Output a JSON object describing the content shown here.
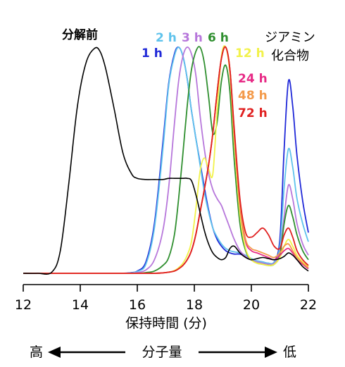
{
  "chart_data": {
    "type": "line",
    "xlabel": "保持時間 (分)",
    "ylabel": "",
    "xlim": [
      12,
      22
    ],
    "ylim": [
      0,
      1
    ],
    "x_ticks": [
      "12",
      "14",
      "16",
      "18",
      "20",
      "22"
    ],
    "grid": false,
    "x": [
      12.0,
      12.5,
      13.0,
      13.3,
      13.6,
      13.9,
      14.2,
      14.5,
      14.7,
      14.9,
      15.2,
      15.5,
      15.8,
      16.0,
      16.3,
      16.6,
      16.9,
      17.1,
      17.3,
      17.45,
      17.6,
      17.75,
      17.9,
      18.05,
      18.2,
      18.35,
      18.5,
      18.65,
      18.8,
      18.95,
      19.1,
      19.25,
      19.4,
      19.6,
      19.8,
      20.0,
      20.2,
      20.4,
      20.6,
      20.8,
      21.0,
      21.15,
      21.3,
      21.45,
      21.6,
      21.8,
      22.0
    ],
    "series": [
      {
        "name": "分解前",
        "color": "#000000",
        "values": [
          0.0,
          0.0,
          0.005,
          0.1,
          0.4,
          0.74,
          0.93,
          0.995,
          0.98,
          0.9,
          0.72,
          0.53,
          0.44,
          0.42,
          0.415,
          0.415,
          0.415,
          0.42,
          0.42,
          0.42,
          0.42,
          0.42,
          0.41,
          0.35,
          0.27,
          0.19,
          0.13,
          0.09,
          0.07,
          0.06,
          0.07,
          0.11,
          0.12,
          0.09,
          0.07,
          0.06,
          0.065,
          0.07,
          0.065,
          0.06,
          0.065,
          0.075,
          0.09,
          0.08,
          0.06,
          0.03,
          0.01
        ]
      },
      {
        "name": "1 h",
        "color": "#2029d8",
        "values": [
          0.0,
          0.0,
          0.0,
          0.0,
          0.0,
          0.0,
          0.0,
          0.0,
          0.0,
          0.0,
          0.0,
          0.0,
          0.003,
          0.01,
          0.05,
          0.22,
          0.58,
          0.84,
          0.97,
          1.0,
          0.96,
          0.86,
          0.72,
          0.6,
          0.49,
          0.38,
          0.28,
          0.2,
          0.15,
          0.12,
          0.1,
          0.09,
          0.085,
          0.085,
          0.075,
          0.06,
          0.055,
          0.05,
          0.045,
          0.05,
          0.15,
          0.55,
          0.85,
          0.74,
          0.52,
          0.32,
          0.18
        ]
      },
      {
        "name": "2 h",
        "color": "#5fc3ec",
        "values": [
          0.0,
          0.0,
          0.0,
          0.0,
          0.0,
          0.0,
          0.0,
          0.0,
          0.0,
          0.0,
          0.0,
          0.0,
          0.002,
          0.008,
          0.04,
          0.2,
          0.55,
          0.83,
          0.96,
          1.0,
          0.96,
          0.86,
          0.72,
          0.6,
          0.48,
          0.36,
          0.27,
          0.2,
          0.16,
          0.13,
          0.11,
          0.1,
          0.095,
          0.09,
          0.08,
          0.065,
          0.055,
          0.05,
          0.045,
          0.05,
          0.12,
          0.38,
          0.55,
          0.47,
          0.33,
          0.22,
          0.14
        ]
      },
      {
        "name": "3 h",
        "color": "#b777db",
        "values": [
          0.0,
          0.0,
          0.0,
          0.0,
          0.0,
          0.0,
          0.0,
          0.0,
          0.0,
          0.0,
          0.0,
          0.0,
          0.0,
          0.003,
          0.015,
          0.06,
          0.19,
          0.38,
          0.66,
          0.85,
          0.96,
          1.0,
          0.97,
          0.88,
          0.7,
          0.55,
          0.44,
          0.37,
          0.33,
          0.3,
          0.25,
          0.2,
          0.15,
          0.1,
          0.075,
          0.06,
          0.05,
          0.045,
          0.04,
          0.045,
          0.09,
          0.25,
          0.39,
          0.33,
          0.22,
          0.13,
          0.08
        ]
      },
      {
        "name": "6 h",
        "color": "#2f8f2f",
        "values": [
          0.0,
          0.0,
          0.0,
          0.0,
          0.0,
          0.0,
          0.0,
          0.0,
          0.0,
          0.0,
          0.0,
          0.0,
          0.0,
          0.0,
          0.003,
          0.01,
          0.035,
          0.07,
          0.17,
          0.33,
          0.53,
          0.74,
          0.9,
          0.98,
          1.0,
          0.93,
          0.78,
          0.62,
          0.67,
          0.85,
          0.92,
          0.8,
          0.5,
          0.22,
          0.1,
          0.06,
          0.045,
          0.04,
          0.035,
          0.04,
          0.08,
          0.22,
          0.3,
          0.25,
          0.17,
          0.1,
          0.06
        ]
      },
      {
        "name": "12 h",
        "color": "#f2f24a",
        "values": [
          0.0,
          0.0,
          0.0,
          0.0,
          0.0,
          0.0,
          0.0,
          0.0,
          0.0,
          0.0,
          0.0,
          0.0,
          0.0,
          0.0,
          0.0,
          0.0,
          0.002,
          0.005,
          0.012,
          0.025,
          0.045,
          0.08,
          0.14,
          0.28,
          0.45,
          0.51,
          0.46,
          0.44,
          0.72,
          0.96,
          1.0,
          0.88,
          0.58,
          0.26,
          0.11,
          0.06,
          0.045,
          0.04,
          0.035,
          0.04,
          0.07,
          0.12,
          0.15,
          0.12,
          0.08,
          0.05,
          0.03
        ]
      },
      {
        "name": "24 h",
        "color": "#e72a86",
        "values": [
          0.0,
          0.0,
          0.0,
          0.0,
          0.0,
          0.0,
          0.0,
          0.0,
          0.0,
          0.0,
          0.0,
          0.0,
          0.0,
          0.0,
          0.0,
          0.0,
          0.002,
          0.005,
          0.01,
          0.02,
          0.035,
          0.06,
          0.1,
          0.17,
          0.27,
          0.37,
          0.48,
          0.62,
          0.8,
          0.95,
          1.0,
          0.9,
          0.62,
          0.3,
          0.14,
          0.1,
          0.09,
          0.08,
          0.07,
          0.06,
          0.08,
          0.1,
          0.11,
          0.09,
          0.06,
          0.04,
          0.02
        ]
      },
      {
        "name": "48 h",
        "color": "#f39a4a",
        "values": [
          0.0,
          0.0,
          0.0,
          0.0,
          0.0,
          0.0,
          0.0,
          0.0,
          0.0,
          0.0,
          0.0,
          0.0,
          0.0,
          0.0,
          0.0,
          0.0,
          0.002,
          0.005,
          0.01,
          0.02,
          0.035,
          0.06,
          0.1,
          0.17,
          0.27,
          0.37,
          0.48,
          0.62,
          0.8,
          0.95,
          1.0,
          0.9,
          0.63,
          0.31,
          0.15,
          0.11,
          0.1,
          0.09,
          0.08,
          0.07,
          0.09,
          0.12,
          0.13,
          0.1,
          0.07,
          0.045,
          0.025
        ]
      },
      {
        "name": "72 h",
        "color": "#e02020",
        "values": [
          0.0,
          0.0,
          0.0,
          0.0,
          0.0,
          0.0,
          0.0,
          0.0,
          0.0,
          0.0,
          0.0,
          0.0,
          0.0,
          0.0,
          0.0,
          0.0,
          0.002,
          0.005,
          0.01,
          0.02,
          0.035,
          0.06,
          0.1,
          0.17,
          0.27,
          0.37,
          0.48,
          0.62,
          0.8,
          0.95,
          1.0,
          0.9,
          0.64,
          0.33,
          0.18,
          0.16,
          0.18,
          0.2,
          0.17,
          0.12,
          0.11,
          0.17,
          0.2,
          0.16,
          0.1,
          0.06,
          0.035
        ]
      }
    ],
    "annotations": {
      "diamine": [
        "ジアミン",
        "化合物"
      ],
      "mw_axis": {
        "high": "高",
        "label": "分子量",
        "low": "低"
      }
    }
  }
}
